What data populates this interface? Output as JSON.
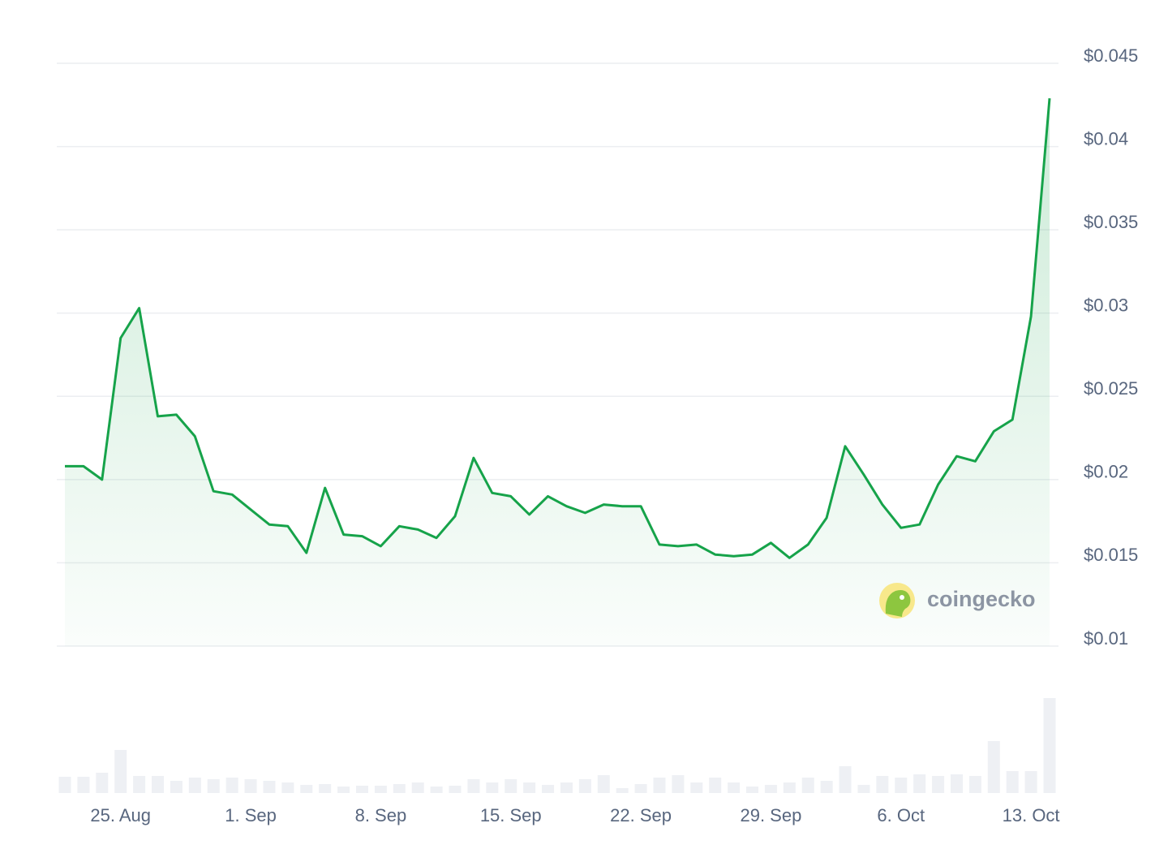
{
  "chart_data": {
    "type": "line",
    "categories": [
      null,
      null,
      null,
      "25. Aug",
      null,
      null,
      null,
      null,
      null,
      null,
      "1. Sep",
      null,
      null,
      null,
      null,
      null,
      null,
      "8. Sep",
      null,
      null,
      null,
      null,
      null,
      null,
      "15. Sep",
      null,
      null,
      null,
      null,
      null,
      null,
      "22. Sep",
      null,
      null,
      null,
      null,
      null,
      null,
      "29. Sep",
      null,
      null,
      null,
      null,
      null,
      null,
      "6. Oct",
      null,
      null,
      null,
      null,
      null,
      null,
      "13. Oct",
      null
    ],
    "values": [
      0.0208,
      0.0208,
      0.02,
      0.0285,
      0.0303,
      0.0238,
      0.0239,
      0.0226,
      0.0193,
      0.0191,
      0.0182,
      0.0173,
      0.0172,
      0.0156,
      0.0195,
      0.0167,
      0.0166,
      0.016,
      0.0172,
      0.017,
      0.0165,
      0.0178,
      0.0213,
      0.0192,
      0.019,
      0.0179,
      0.019,
      0.0184,
      0.018,
      0.0185,
      0.0184,
      0.0184,
      0.0161,
      0.016,
      0.0161,
      0.0155,
      0.0154,
      0.0155,
      0.0162,
      0.0153,
      0.0161,
      0.0177,
      0.022,
      0.0203,
      0.0185,
      0.0171,
      0.0173,
      0.0197,
      0.0214,
      0.0211,
      0.0229,
      0.0236,
      0.0298,
      0.0429
    ],
    "color": "#16a34a",
    "volumes": [
      20,
      20,
      25,
      53,
      21,
      21,
      15,
      19,
      17,
      19,
      17,
      15,
      13,
      10,
      11,
      8,
      9,
      9,
      11,
      13,
      8,
      9,
      17,
      13,
      17,
      13,
      10,
      13,
      17,
      22,
      6,
      11,
      19,
      22,
      13,
      19,
      13,
      8,
      10,
      13,
      19,
      15,
      33,
      10,
      21,
      19,
      23,
      21,
      23,
      21,
      64,
      27,
      27,
      117
    ],
    "volume_color": "#eef0f4",
    "volume_lim": [
      0,
      120
    ],
    "ylim": [
      0.01,
      0.045
    ],
    "yticks": [
      {
        "value": 0.045,
        "label": "$0.045"
      },
      {
        "value": 0.04,
        "label": "$0.04"
      },
      {
        "value": 0.035,
        "label": "$0.035"
      },
      {
        "value": 0.03,
        "label": "$0.03"
      },
      {
        "value": 0.025,
        "label": "$0.025"
      },
      {
        "value": 0.02,
        "label": "$0.02"
      },
      {
        "value": 0.015,
        "label": "$0.015"
      },
      {
        "value": 0.01,
        "label": "$0.01"
      }
    ],
    "grid": true,
    "watermark": "coingecko"
  }
}
